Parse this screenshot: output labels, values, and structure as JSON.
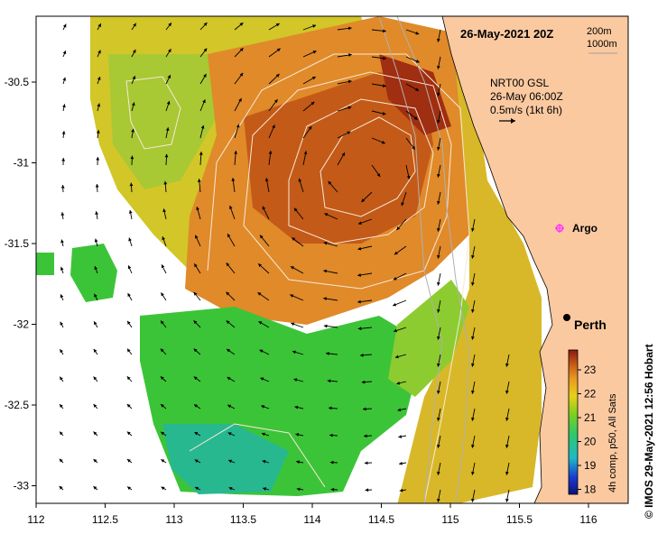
{
  "header": {
    "timestamp": "26-May-2021 20Z",
    "depth_shallow": "200m",
    "depth_deep": "1000m"
  },
  "current_legend": {
    "line1": "NRT00 GSL",
    "line2": "26-May 06:00Z",
    "line3": "0.5m/s (1kt 6h)"
  },
  "axes": {
    "lon_ticks": [
      "112",
      "112.5",
      "113",
      "113.5",
      "114",
      "114.5",
      "115",
      "115.5",
      "116"
    ],
    "lat_ticks": [
      "-30.5",
      "-31",
      "-31.5",
      "-32",
      "-32.5",
      "-33"
    ]
  },
  "places": {
    "argo": "Argo",
    "perth": "Perth"
  },
  "colorbar": {
    "ticks": [
      "23",
      "22",
      "21",
      "20",
      "19",
      "18"
    ],
    "label": "4h comp, p50, All Sats"
  },
  "credit": "© IMOS 29-May-2021 12:56 Hobart",
  "colors": {
    "land": "#fbc9a0",
    "warm": "#b84a12",
    "orange": "#e08a2a",
    "yellow": "#e8c81a",
    "green": "#3cc438",
    "teal": "#1fb8a8",
    "argo_marker": "#ff33ff"
  }
}
